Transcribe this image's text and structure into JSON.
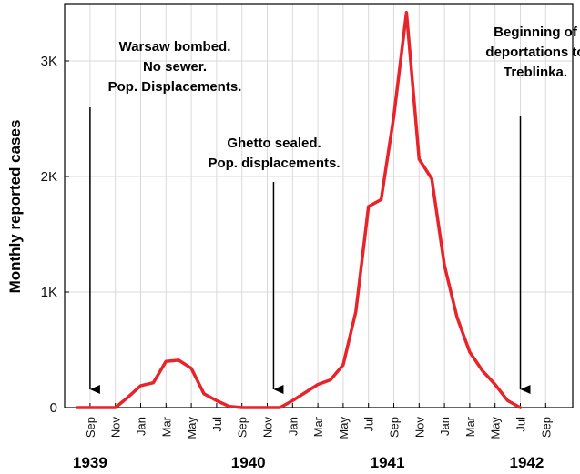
{
  "chart_data": {
    "type": "line",
    "ylabel": "Monthly reported cases",
    "ylim": [
      0,
      3500
    ],
    "yticks": [
      {
        "value": 0,
        "label": "0"
      },
      {
        "value": 1000,
        "label": "1K"
      },
      {
        "value": 2000,
        "label": "2K"
      },
      {
        "value": 3000,
        "label": "3K"
      }
    ],
    "x_start_index": 0,
    "x_end_index": 36.5,
    "month_ticks": [
      {
        "index": 1,
        "label": "Sep"
      },
      {
        "index": 3,
        "label": "Nov"
      },
      {
        "index": 5,
        "label": "Jan"
      },
      {
        "index": 7,
        "label": "Mar"
      },
      {
        "index": 9,
        "label": "May"
      },
      {
        "index": 11,
        "label": "Jul"
      },
      {
        "index": 13,
        "label": "Sep"
      },
      {
        "index": 15,
        "label": "Nov"
      },
      {
        "index": 17,
        "label": "Jan"
      },
      {
        "index": 19,
        "label": "Mar"
      },
      {
        "index": 21,
        "label": "May"
      },
      {
        "index": 23,
        "label": "Jul"
      },
      {
        "index": 25,
        "label": "Sep"
      },
      {
        "index": 27,
        "label": "Nov"
      },
      {
        "index": 29,
        "label": "Jan"
      },
      {
        "index": 31,
        "label": "Mar"
      },
      {
        "index": 33,
        "label": "May"
      },
      {
        "index": 35,
        "label": "Jul"
      },
      {
        "index": 37,
        "label": "Sep"
      }
    ],
    "year_labels": [
      {
        "index": 1,
        "label": "1939"
      },
      {
        "index": 13.5,
        "label": "1940"
      },
      {
        "index": 24.5,
        "label": "1941"
      },
      {
        "index": 35.5,
        "label": "1942"
      }
    ],
    "series": [
      {
        "name": "Monthly reported cases",
        "color": "#e8232a",
        "x": [
          0,
          1,
          2,
          3,
          4,
          5,
          6,
          7,
          8,
          9,
          10,
          11,
          12,
          13,
          14,
          15,
          16,
          17,
          18,
          19,
          20,
          21,
          22,
          23,
          24,
          25,
          26,
          27,
          28,
          29,
          30,
          31,
          32,
          33,
          34,
          35
        ],
        "values": [
          0,
          0,
          0,
          0,
          90,
          190,
          215,
          400,
          410,
          340,
          120,
          60,
          10,
          0,
          0,
          0,
          0,
          60,
          130,
          200,
          240,
          370,
          830,
          1740,
          1800,
          2520,
          3420,
          2150,
          1980,
          1230,
          780,
          480,
          320,
          200,
          60,
          0
        ]
      }
    ],
    "annotations": [
      {
        "index": 1,
        "lines": [
          "Warsaw bombed.",
          "No sewer.",
          "Pop. Displacements."
        ]
      },
      {
        "index": 15.5,
        "lines": [
          "Ghetto sealed.",
          "Pop. displacements."
        ]
      },
      {
        "index": 35,
        "lines": [
          "Beginning of",
          "deportations to",
          "Treblinka."
        ]
      }
    ]
  }
}
